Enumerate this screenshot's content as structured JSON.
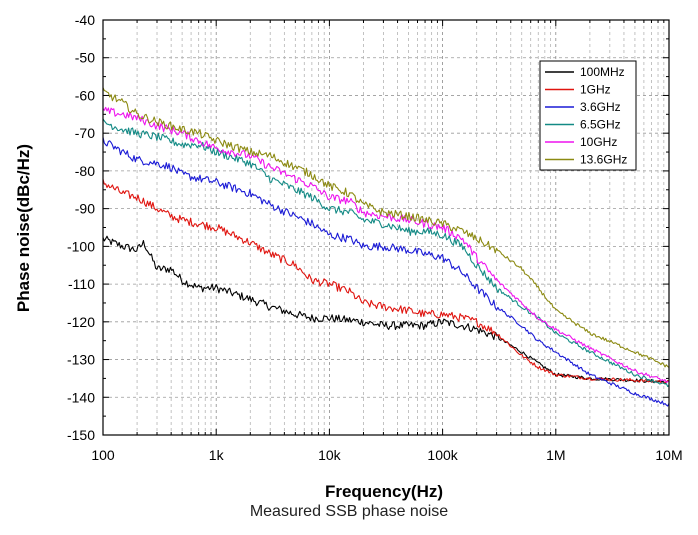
{
  "caption": "Measured SSB phase noise",
  "colors": {
    "100MHz": "#000000",
    "1GHz": "#e0140f",
    "3.6GHz": "#1a1ad6",
    "6.5GHz": "#138a85",
    "10GHz": "#ee14ee",
    "13.6GHz": "#8c8a12"
  },
  "chart_data": {
    "type": "line",
    "title": "",
    "xlabel": "Frequency(Hz)",
    "ylabel": "Phase noise(dBc/Hz)",
    "x_scale": "log",
    "xlim": [
      100,
      10000000
    ],
    "ylim": [
      -150,
      -40
    ],
    "x_ticks": [
      100,
      1000,
      10000,
      100000,
      1000000,
      10000000
    ],
    "x_tick_labels": [
      "100",
      "1k",
      "10k",
      "100k",
      "1M",
      "10M"
    ],
    "y_ticks": [
      -150,
      -140,
      -130,
      -120,
      -110,
      -100,
      -90,
      -80,
      -70,
      -60,
      -50,
      -40
    ],
    "y_tick_labels": [
      "-150",
      "-140",
      "-130",
      "-120",
      "-110",
      "-100",
      "-90",
      "-80",
      "-70",
      "-60",
      "-50",
      "-40"
    ],
    "grid": true,
    "legend_position": "top-right",
    "series": [
      {
        "name": "100MHz",
        "x": [
          100,
          150,
          200,
          230,
          300,
          400,
          500,
          700,
          1000,
          2000,
          3000,
          5000,
          7000,
          10000,
          20000,
          30000,
          50000,
          70000,
          100000,
          150000,
          200000,
          300000,
          500000,
          700000,
          1000000,
          2000000,
          5000000,
          10000000
        ],
        "y": [
          -98,
          -100,
          -101,
          -99,
          -106,
          -106,
          -109,
          -111,
          -111,
          -114,
          -116,
          -118,
          -119,
          -119,
          -120,
          -121,
          -121,
          -121,
          -120,
          -121,
          -122,
          -124,
          -128,
          -131,
          -134,
          -135,
          -135.5,
          -136
        ]
      },
      {
        "name": "1GHz",
        "x": [
          100,
          150,
          200,
          300,
          400,
          500,
          700,
          1000,
          2000,
          3000,
          5000,
          7000,
          10000,
          15000,
          20000,
          30000,
          50000,
          70000,
          100000,
          150000,
          200000,
          300000,
          500000,
          700000,
          1000000,
          2000000,
          5000000,
          10000000
        ],
        "y": [
          -83,
          -86,
          -87,
          -90,
          -92,
          -93,
          -94,
          -95,
          -99,
          -102,
          -105,
          -109,
          -110,
          -112,
          -115,
          -116,
          -117,
          -118,
          -118,
          -119,
          -120,
          -123,
          -129,
          -132,
          -134,
          -135,
          -135.5,
          -136
        ]
      },
      {
        "name": "3.6GHz",
        "x": [
          100,
          150,
          200,
          300,
          400,
          500,
          700,
          1000,
          2000,
          3000,
          5000,
          7000,
          10000,
          15000,
          20000,
          30000,
          50000,
          70000,
          100000,
          150000,
          200000,
          300000,
          500000,
          700000,
          1000000,
          2000000,
          5000000,
          10000000
        ],
        "y": [
          -72,
          -75,
          -77,
          -78,
          -79,
          -81,
          -82,
          -83,
          -86,
          -89,
          -92,
          -94,
          -97,
          -98,
          -100,
          -100,
          -101,
          -102,
          -103,
          -107,
          -111,
          -116,
          -121,
          -125,
          -128,
          -134,
          -139,
          -142
        ]
      },
      {
        "name": "6.5GHz",
        "x": [
          100,
          150,
          200,
          300,
          500,
          700,
          1000,
          2000,
          3000,
          5000,
          7000,
          10000,
          15000,
          20000,
          30000,
          50000,
          70000,
          100000,
          150000,
          200000,
          300000,
          500000,
          700000,
          1000000,
          2000000,
          5000000,
          10000000
        ],
        "y": [
          -67,
          -69,
          -70,
          -71,
          -73,
          -73,
          -75,
          -78,
          -82,
          -85,
          -87,
          -90,
          -91,
          -93,
          -94,
          -96,
          -96,
          -97,
          -100,
          -105,
          -111,
          -116,
          -119,
          -123,
          -128,
          -134,
          -137
        ]
      },
      {
        "name": "10GHz",
        "x": [
          100,
          150,
          200,
          300,
          500,
          700,
          1000,
          2000,
          3000,
          5000,
          7000,
          10000,
          15000,
          20000,
          30000,
          50000,
          70000,
          100000,
          150000,
          200000,
          300000,
          500000,
          700000,
          1000000,
          2000000,
          5000000,
          10000000
        ],
        "y": [
          -64,
          -65,
          -66,
          -68,
          -70,
          -72,
          -74,
          -76,
          -79,
          -82,
          -84,
          -87,
          -88,
          -91,
          -92,
          -93,
          -94,
          -95,
          -98,
          -103,
          -109,
          -115,
          -119,
          -122,
          -127,
          -133,
          -136
        ]
      },
      {
        "name": "13.6GHz",
        "x": [
          100,
          150,
          200,
          300,
          500,
          700,
          1000,
          2000,
          3000,
          5000,
          7000,
          10000,
          15000,
          20000,
          30000,
          50000,
          70000,
          100000,
          150000,
          200000,
          300000,
          500000,
          700000,
          1000000,
          2000000,
          5000000,
          10000000
        ],
        "y": [
          -59,
          -62,
          -65,
          -67,
          -69,
          -70,
          -72,
          -75,
          -76,
          -79,
          -81,
          -84,
          -86,
          -89,
          -91,
          -92,
          -93,
          -94,
          -96,
          -98,
          -101,
          -106,
          -111,
          -117,
          -123,
          -128,
          -132
        ]
      }
    ]
  }
}
